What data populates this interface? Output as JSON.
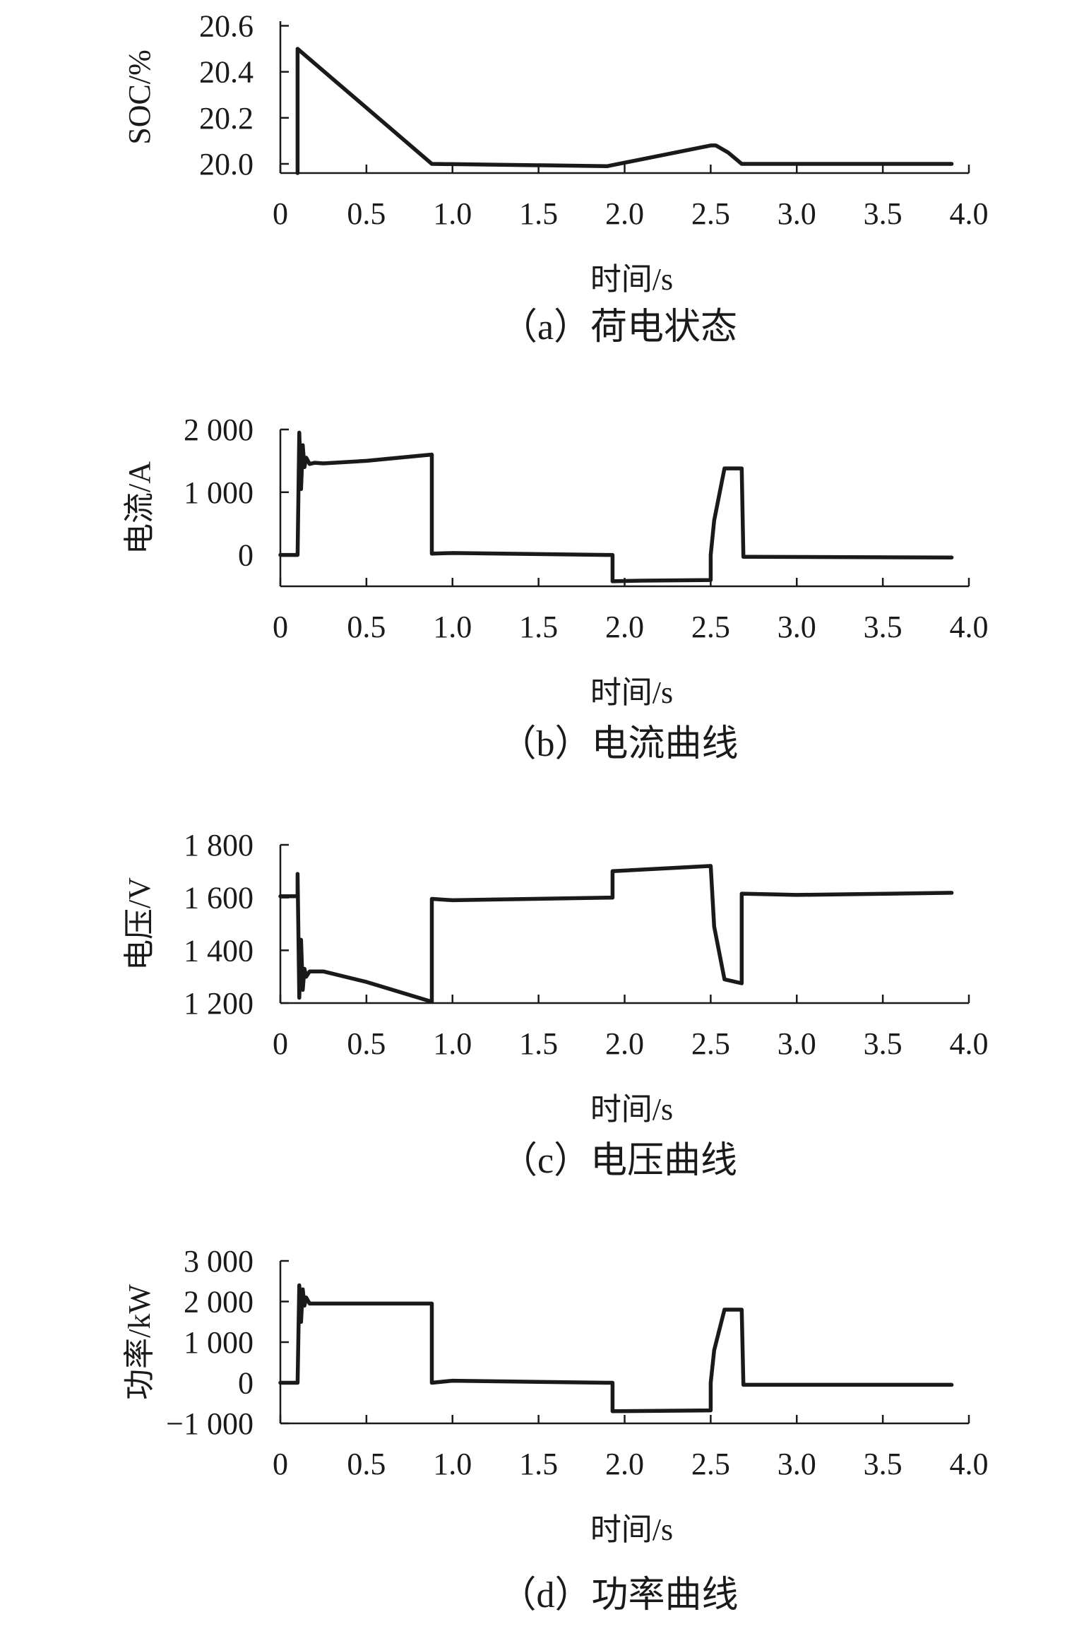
{
  "chart_data": [
    {
      "type": "line",
      "caption": "（a）荷电状态",
      "xlabel": "时间/s",
      "ylabel": "SOC/%",
      "xlim": [
        0,
        4.0
      ],
      "ylim": [
        19.96,
        20.62
      ],
      "x_ticks": [
        0,
        0.5,
        1.0,
        1.5,
        2.0,
        2.5,
        3.0,
        3.5,
        4.0
      ],
      "x_tick_labels": [
        "0",
        "0.5",
        "1.0",
        "1.5",
        "2.0",
        "2.5",
        "3.0",
        "3.5",
        "4.0"
      ],
      "y_ticks": [
        20.0,
        20.2,
        20.4,
        20.6
      ],
      "y_tick_labels": [
        "20.0",
        "20.2",
        "20.4",
        "20.6"
      ],
      "grid": false,
      "series": [
        {
          "x": [
            0.1,
            0.1,
            0.88,
            1.9,
            2.5,
            2.53,
            2.6,
            2.68,
            3.9
          ],
          "y": [
            19.96,
            20.5,
            20.0,
            19.99,
            20.08,
            20.08,
            20.05,
            20.0,
            20.0
          ]
        }
      ]
    },
    {
      "type": "line",
      "caption": "（b）电流曲线",
      "xlabel": "时间/s",
      "ylabel": "电流/A",
      "xlim": [
        0,
        4.0
      ],
      "ylim": [
        -500,
        2000
      ],
      "x_ticks": [
        0,
        0.5,
        1.0,
        1.5,
        2.0,
        2.5,
        3.0,
        3.5,
        4.0
      ],
      "x_tick_labels": [
        "0",
        "0.5",
        "1.0",
        "1.5",
        "2.0",
        "2.5",
        "3.0",
        "3.5",
        "4.0"
      ],
      "y_ticks": [
        0,
        1000,
        2000
      ],
      "y_tick_labels": [
        "0",
        "1 000",
        "2 000"
      ],
      "grid": false,
      "series": [
        {
          "x": [
            0.0,
            0.1,
            0.11,
            0.12,
            0.13,
            0.14,
            0.15,
            0.17,
            0.2,
            0.25,
            0.5,
            0.88,
            0.88,
            1.0,
            1.9,
            1.93,
            1.93,
            2.1,
            2.5,
            2.5,
            2.52,
            2.58,
            2.68,
            2.69,
            2.75,
            3.9
          ],
          "y": [
            0,
            0,
            1950,
            1050,
            1750,
            1400,
            1550,
            1450,
            1470,
            1460,
            1500,
            1600,
            20,
            30,
            0,
            0,
            -420,
            -410,
            -400,
            0,
            550,
            1380,
            1380,
            -30,
            -30,
            -40
          ]
        }
      ]
    },
    {
      "type": "line",
      "caption": "（c）电压曲线",
      "xlabel": "时间/s",
      "ylabel": "电压/V",
      "xlim": [
        0,
        4.0
      ],
      "ylim": [
        1200,
        1800
      ],
      "x_ticks": [
        0,
        0.5,
        1.0,
        1.5,
        2.0,
        2.5,
        3.0,
        3.5,
        4.0
      ],
      "x_tick_labels": [
        "0",
        "0.5",
        "1.0",
        "1.5",
        "2.0",
        "2.5",
        "3.0",
        "3.5",
        "4.0"
      ],
      "y_ticks": [
        1200,
        1400,
        1600,
        1800
      ],
      "y_tick_labels": [
        "1 200",
        "1 400",
        "1 600",
        "1 800"
      ],
      "grid": false,
      "series": [
        {
          "x": [
            0.0,
            0.1,
            0.1,
            0.11,
            0.12,
            0.13,
            0.14,
            0.15,
            0.17,
            0.2,
            0.25,
            0.5,
            0.88,
            0.88,
            1.0,
            1.9,
            1.93,
            1.93,
            2.5,
            2.52,
            2.58,
            2.68,
            2.68,
            3.0,
            3.9
          ],
          "y": [
            1605,
            1605,
            1690,
            1220,
            1440,
            1250,
            1330,
            1300,
            1320,
            1320,
            1320,
            1280,
            1205,
            1595,
            1590,
            1600,
            1600,
            1700,
            1720,
            1490,
            1290,
            1275,
            1615,
            1610,
            1618
          ]
        }
      ]
    },
    {
      "type": "line",
      "caption": "（d）功率曲线",
      "xlabel": "时间/s",
      "ylabel": "功率/kW",
      "xlim": [
        0,
        4.0
      ],
      "ylim": [
        -1000,
        3000
      ],
      "x_ticks": [
        0,
        0.5,
        1.0,
        1.5,
        2.0,
        2.5,
        3.0,
        3.5,
        4.0
      ],
      "x_tick_labels": [
        "0",
        "0.5",
        "1.0",
        "1.5",
        "2.0",
        "2.5",
        "3.0",
        "3.5",
        "4.0"
      ],
      "y_ticks": [
        -1000,
        0,
        1000,
        2000,
        3000
      ],
      "y_tick_labels": [
        "−1 000",
        "0",
        "1 000",
        "2 000",
        "3 000"
      ],
      "grid": false,
      "series": [
        {
          "x": [
            0.0,
            0.1,
            0.11,
            0.12,
            0.13,
            0.14,
            0.15,
            0.17,
            0.2,
            0.5,
            0.88,
            0.88,
            1.0,
            1.9,
            1.93,
            1.93,
            2.5,
            2.5,
            2.52,
            2.58,
            2.68,
            2.69,
            3.9
          ],
          "y": [
            0,
            0,
            2400,
            1500,
            2300,
            1900,
            2100,
            1950,
            1950,
            1950,
            1950,
            0,
            50,
            0,
            0,
            -700,
            -680,
            0,
            800,
            1800,
            1800,
            -50,
            -50
          ]
        }
      ]
    }
  ]
}
